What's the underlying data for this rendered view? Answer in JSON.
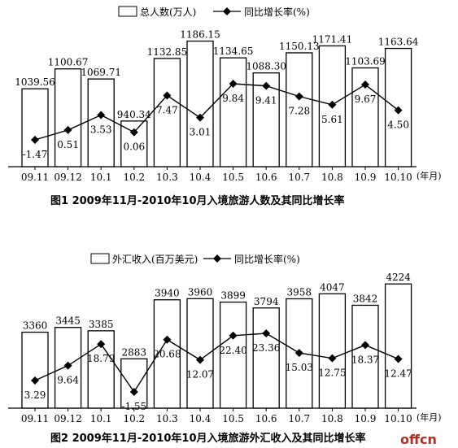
{
  "chart_data": [
    {
      "type": "bar",
      "title": "图1 2009年11月-2010年10月入境旅游人数及其同比增长率",
      "xunit": "(年月)",
      "categories": [
        "09.11",
        "09.12",
        "10.1",
        "10.2",
        "10.3",
        "10.4",
        "10.5",
        "10.6",
        "10.7",
        "10.8",
        "10.9",
        "10.10"
      ],
      "series": [
        {
          "name": "总人数(万人)",
          "type": "bar",
          "values": [
            1039.56,
            1100.67,
            1069.71,
            940.34,
            1132.85,
            1186.15,
            1134.65,
            1088.3,
            1150.13,
            1171.41,
            1103.69,
            1163.64
          ]
        },
        {
          "name": "同比增长率(%)",
          "type": "line",
          "values": [
            -1.47,
            0.51,
            3.53,
            0.06,
            7.47,
            3.01,
            9.84,
            9.41,
            7.28,
            5.61,
            9.67,
            4.5
          ]
        }
      ],
      "legend": "top-center",
      "grid": false
    },
    {
      "type": "bar",
      "title": "图2 2009年11月-2010年10月入境旅游外汇收入及其同比增长率",
      "xunit": "(年月)",
      "categories": [
        "09.11",
        "09.12",
        "10.1",
        "10.2",
        "10.3",
        "10.4",
        "10.5",
        "10.6",
        "10.7",
        "10.8",
        "10.9",
        "10.10"
      ],
      "series": [
        {
          "name": "外汇收入(百万美元)",
          "type": "bar",
          "values": [
            3360,
            3445,
            3385,
            2883,
            3940,
            3960,
            3899,
            3794,
            3958,
            4047,
            3842,
            4224
          ]
        },
        {
          "name": "同比增长率(%)",
          "type": "line",
          "values": [
            3.29,
            9.64,
            18.79,
            -1.55,
            20.68,
            12.07,
            22.4,
            23.36,
            15.03,
            12.75,
            18.37,
            12.47
          ]
        }
      ],
      "legend": "top-center",
      "grid": false
    }
  ],
  "watermark": "offcn",
  "colors": {
    "bar_fill": "#ffffff",
    "stroke": "#000000",
    "watermark": "#c0281c"
  }
}
